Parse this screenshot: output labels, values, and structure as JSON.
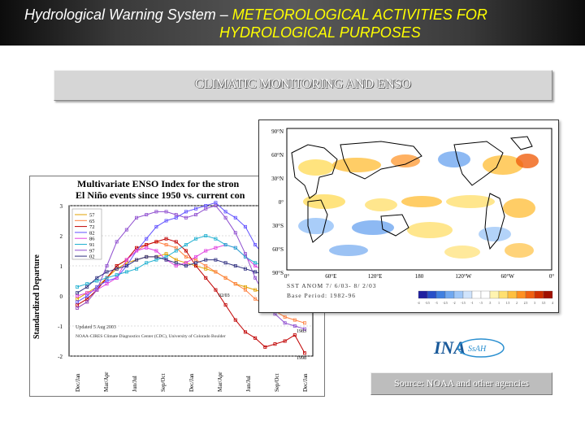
{
  "header": {
    "line1_prefix": "Hydrological Warning System – ",
    "line1_highlight": "METEOROLOGICAL ACTIVITIES FOR",
    "line2": "HYDROLOGICAL PURPOSES"
  },
  "banner": {
    "title": "CLIMATIC MONITORING AND ENSO"
  },
  "enso_chart": {
    "title_line1": "Multivariate ENSO Index for the stron",
    "title_line2": "El Niño events since 1950 vs. current con",
    "ylabel": "Standardized Departure",
    "updated": "Updated 5 Aug 2003",
    "credit": "NOAA-CIRES Climate Diagnostics Center (CDC), University of Colorado Boulder",
    "y_ticks": [
      "3",
      "2",
      "1",
      "0",
      "-1",
      "-2"
    ],
    "x_ticks": [
      "Dec/Jan",
      "Mar/Apr",
      "Jun/Jul",
      "Sep/Oct",
      "Dec/Jan",
      "Mar/Apr",
      "Jun/Jul",
      "Sep/Oct",
      "Dec/Jan"
    ],
    "legend": [
      "57",
      "65",
      "72",
      "82",
      "86",
      "91",
      "97",
      "02"
    ],
    "end_labels": [
      "02/03",
      "1983",
      "1998"
    ]
  },
  "chart_data": {
    "type": "line",
    "ylim": [
      -2,
      3
    ],
    "x": [
      1,
      2,
      3,
      4,
      5,
      6,
      7,
      8,
      9,
      10,
      11,
      12,
      13,
      14,
      15,
      16,
      17,
      18,
      19,
      20,
      21,
      22,
      23,
      24
    ],
    "series": [
      {
        "name": "57",
        "color": "#e0a000",
        "values": [
          -0.1,
          0.1,
          0.3,
          0.6,
          0.9,
          1.1,
          1.2,
          1.3,
          1.3,
          1.4,
          1.2,
          1.1,
          1.0,
          0.9,
          0.8,
          0.6,
          0.4,
          0.3,
          0.2,
          0.1,
          0.0,
          -0.2,
          -0.3,
          -0.4
        ]
      },
      {
        "name": "65",
        "color": "#ff8040",
        "values": [
          -0.4,
          -0.2,
          0.2,
          0.6,
          1.0,
          1.2,
          1.5,
          1.7,
          1.8,
          1.7,
          1.6,
          1.3,
          1.2,
          1.0,
          0.8,
          0.6,
          0.4,
          0.2,
          -0.1,
          -0.3,
          -0.5,
          -0.7,
          -0.8,
          -0.9
        ]
      },
      {
        "name": "72",
        "color": "#c00000",
        "values": [
          -0.3,
          -0.1,
          0.2,
          0.6,
          1.0,
          1.2,
          1.6,
          1.7,
          1.8,
          1.9,
          1.8,
          1.5,
          1.0,
          0.6,
          0.2,
          -0.3,
          -0.8,
          -1.2,
          -1.4,
          -1.7,
          -1.6,
          -1.5,
          -1.3,
          -1.9
        ]
      },
      {
        "name": "82",
        "color": "#6050ff",
        "values": [
          -0.2,
          0.0,
          0.3,
          0.5,
          0.6,
          1.0,
          1.5,
          1.9,
          2.3,
          2.5,
          2.6,
          2.8,
          2.9,
          3.0,
          3.1,
          2.8,
          2.6,
          2.3,
          1.7,
          1.3,
          0.8,
          0.5,
          0.2,
          0.1
        ]
      },
      {
        "name": "86",
        "color": "#e040e0",
        "values": [
          0.0,
          0.1,
          0.2,
          0.4,
          0.6,
          1.2,
          1.5,
          1.6,
          1.5,
          1.2,
          1.0,
          1.1,
          1.3,
          1.5,
          1.6,
          1.7,
          1.6,
          1.3,
          1.0,
          0.8,
          0.7,
          0.6,
          0.5,
          0.4
        ]
      },
      {
        "name": "91",
        "color": "#20b0d0",
        "values": [
          0.3,
          0.4,
          0.5,
          0.6,
          0.7,
          0.8,
          0.9,
          1.1,
          1.2,
          1.3,
          1.5,
          1.7,
          1.9,
          2.0,
          1.9,
          1.7,
          1.6,
          1.3,
          1.1,
          1.0,
          0.8,
          0.6,
          0.5,
          0.4
        ]
      },
      {
        "name": "97",
        "color": "#9050d0",
        "values": [
          -0.4,
          -0.2,
          0.2,
          1.0,
          1.8,
          2.2,
          2.6,
          2.7,
          2.8,
          2.8,
          2.7,
          2.6,
          2.7,
          2.9,
          3.0,
          2.6,
          2.1,
          1.4,
          0.6,
          0.0,
          -0.6,
          -0.9,
          -1.0,
          -1.1
        ]
      },
      {
        "name": "02",
        "color": "#303080",
        "values": [
          0.1,
          0.3,
          0.6,
          0.8,
          0.9,
          1.0,
          1.2,
          1.3,
          1.3,
          1.2,
          1.1,
          1.0,
          1.1,
          1.2,
          1.2,
          1.1,
          1.0,
          0.9,
          0.8,
          0.7,
          null,
          null,
          null,
          null
        ]
      }
    ]
  },
  "sst_map": {
    "lat_labels": [
      "90°N",
      "60°N",
      "30°N",
      "0°",
      "30°S",
      "60°S",
      "90°S"
    ],
    "lon_labels": [
      "0°",
      "60°E",
      "120°E",
      "180",
      "120°W",
      "60°W",
      "0°"
    ],
    "caption_line1": "SST ANOM  7/ 6/03- 8/ 2/03",
    "caption_line2": "Base Period: 1982-96",
    "scale_colors": [
      "#2020a0",
      "#2850c8",
      "#4080e0",
      "#70a8f0",
      "#a0c8f8",
      "#d0e4fc",
      "#ffffff",
      "#ffffff",
      "#fff4b0",
      "#ffe070",
      "#ffc040",
      "#ff9020",
      "#f06010",
      "#d03000",
      "#a01000"
    ],
    "scale_labels": [
      "-4",
      "-3.5",
      "-3",
      "-2.5",
      "-2",
      "-1.5",
      "-1",
      "-.5",
      ".5",
      "1",
      "1.5",
      "2",
      "2.5",
      "3",
      "3.5",
      "4"
    ]
  },
  "logo": {
    "text": "INA",
    "subtext": "SsAH"
  },
  "source": {
    "text": "Source: NOAA and other agencies"
  }
}
